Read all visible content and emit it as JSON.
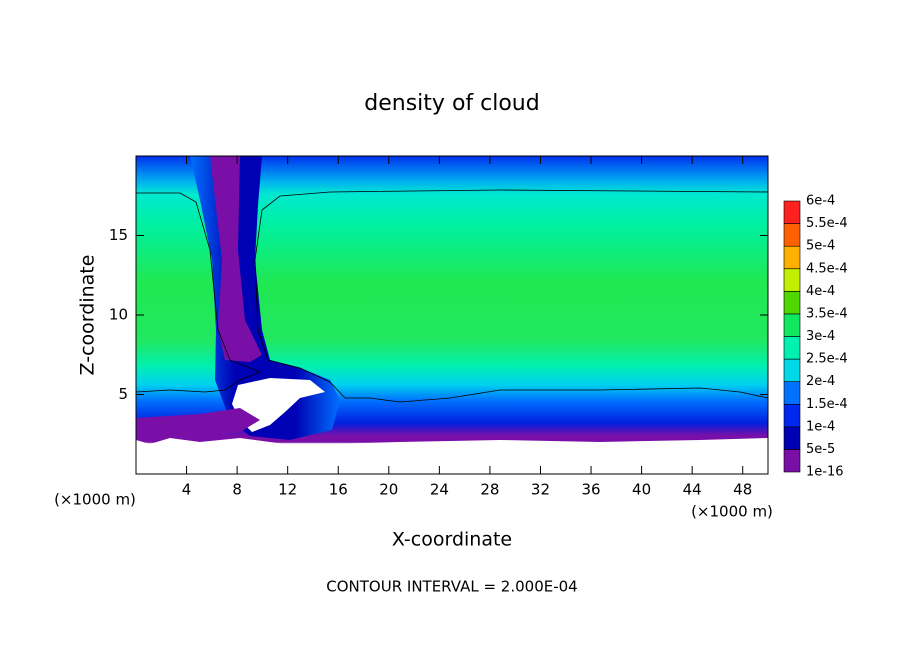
{
  "chart_data": {
    "type": "contour",
    "title": "density of cloud",
    "x_label": "X-coordinate",
    "y_label": "Z-coordinate",
    "x_unit_labels": [
      "(×1000 m)",
      "(×1000 m)"
    ],
    "footnote": "CONTOUR INTERVAL = 2.000E-04",
    "xlim": [
      0,
      50
    ],
    "xticks": [
      4,
      8,
      12,
      16,
      20,
      24,
      28,
      32,
      36,
      40,
      44,
      48
    ],
    "ylim": [
      0,
      20
    ],
    "yticks": [
      5,
      10,
      15
    ],
    "colorbar": {
      "levels": [
        {
          "value": 1e-16,
          "label": "1e-16"
        },
        {
          "value": 5e-05,
          "label": "5e-5"
        },
        {
          "value": 0.0001,
          "label": "1e-4"
        },
        {
          "value": 0.00015,
          "label": "1.5e-4"
        },
        {
          "value": 0.0002,
          "label": "2e-4"
        },
        {
          "value": 0.00025,
          "label": "2.5e-4"
        },
        {
          "value": 0.0003,
          "label": "3e-4"
        },
        {
          "value": 0.00035,
          "label": "3.5e-4"
        },
        {
          "value": 0.0004,
          "label": "4e-4"
        },
        {
          "value": 0.00045,
          "label": "4.5e-4"
        },
        {
          "value": 0.0005,
          "label": "5e-4"
        },
        {
          "value": 0.00055,
          "label": "5.5e-4"
        },
        {
          "value": 0.0006,
          "label": "6e-4"
        }
      ],
      "colors": [
        "#7a0fa8",
        "#0000b4",
        "#0028f0",
        "#0070ff",
        "#00d8e8",
        "#00f0b0",
        "#10e860",
        "#50d800",
        "#c0f000",
        "#ffb000",
        "#ff6000",
        "#ff2020",
        "#ff8888"
      ]
    }
  }
}
